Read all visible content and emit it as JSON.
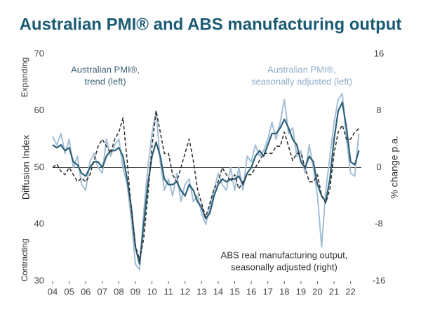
{
  "chart_data": {
    "type": "line",
    "title": "Australian PMI® and ABS manufacturing output",
    "ylabel": "Diffusion Index",
    "y2label": "% change p.a.",
    "upper_label": "Expanding",
    "lower_label": "Contracting",
    "annotations": [
      {
        "lines": [
          "Australian PMI®,",
          "trend (left)"
        ],
        "color": "#3d6378"
      },
      {
        "lines": [
          "Australian PMI®,",
          "seasonally adjusted (left)"
        ],
        "color": "#8eaecb"
      },
      {
        "lines": [
          "ABS real manufacturing output,",
          "seasonally adjusted (right)"
        ],
        "color": "#333333"
      }
    ],
    "x": [
      2004,
      2004.25,
      2004.5,
      2004.75,
      2005,
      2005.25,
      2005.5,
      2005.75,
      2006,
      2006.25,
      2006.5,
      2006.75,
      2007,
      2007.25,
      2007.5,
      2007.75,
      2008,
      2008.25,
      2008.5,
      2008.75,
      2009,
      2009.25,
      2009.5,
      2009.75,
      2010,
      2010.25,
      2010.5,
      2010.75,
      2011,
      2011.25,
      2011.5,
      2011.75,
      2012,
      2012.25,
      2012.5,
      2012.75,
      2013,
      2013.25,
      2013.5,
      2013.75,
      2014,
      2014.25,
      2014.5,
      2014.75,
      2015,
      2015.25,
      2015.5,
      2015.75,
      2016,
      2016.25,
      2016.5,
      2016.75,
      2017,
      2017.25,
      2017.5,
      2017.75,
      2018,
      2018.25,
      2018.5,
      2018.75,
      2019,
      2019.25,
      2019.5,
      2019.75,
      2020,
      2020.25,
      2020.5,
      2020.75,
      2021,
      2021.25,
      2021.5,
      2021.75,
      2022,
      2022.25,
      2022.5
    ],
    "series": [
      {
        "name": "Australian PMI®, seasonally adjusted",
        "color": "#a3bed6",
        "width": 2,
        "dash": false,
        "axis": "y",
        "values": [
          55.5,
          54,
          56,
          52.5,
          55,
          50,
          52,
          47,
          46,
          51,
          52.5,
          50,
          49,
          55,
          52,
          54,
          55,
          50,
          47,
          41,
          33,
          32,
          42,
          50,
          56,
          60,
          51,
          46,
          48,
          45,
          49,
          44,
          47,
          48,
          44,
          45,
          42,
          40,
          43,
          46,
          49,
          47,
          46,
          50,
          46,
          50,
          46,
          52,
          51,
          54,
          52,
          53,
          55,
          58,
          55,
          58,
          62,
          56,
          57,
          52,
          53,
          49,
          54,
          50,
          45,
          36,
          46,
          52,
          58,
          62,
          63,
          55,
          49,
          48.5,
          56
        ]
      },
      {
        "name": "Australian PMI®, trend",
        "color": "#2d5f78",
        "width": 2.2,
        "dash": false,
        "axis": "y",
        "values": [
          54,
          53.5,
          54,
          53,
          53.5,
          51,
          50.5,
          49,
          48.5,
          50,
          51,
          51,
          50,
          52,
          53,
          53,
          53.5,
          52,
          48,
          43,
          36,
          33,
          40,
          47,
          52,
          54.5,
          52,
          48,
          47,
          47,
          47.5,
          46,
          45,
          47,
          46,
          44,
          43,
          41,
          42,
          45,
          47,
          48,
          47.5,
          48,
          48,
          48.5,
          47,
          49,
          50,
          52,
          53,
          52,
          54,
          56,
          56,
          57,
          58.5,
          57,
          55,
          54,
          51,
          50,
          52,
          51,
          47,
          45,
          44,
          48,
          55,
          60,
          61.5,
          57,
          51,
          50.5,
          53
        ]
      },
      {
        "name": "ABS real manufacturing output",
        "color": "#333333",
        "width": 1.6,
        "dash": true,
        "axis": "y2",
        "values": [
          0,
          0.5,
          -0.5,
          -1,
          0,
          -1,
          -2,
          -1.5,
          -2,
          -1,
          1,
          3,
          4,
          3,
          2,
          4,
          5,
          7,
          1,
          -6,
          -11,
          -13,
          -10,
          -4,
          3,
          8,
          5,
          2,
          2,
          -1,
          -2,
          0,
          2,
          4,
          1,
          -3,
          -5,
          -7,
          -5,
          -3,
          -2,
          0,
          -1,
          -2,
          -1,
          -3,
          -2,
          -1,
          -1,
          0,
          1,
          2,
          2,
          2,
          3,
          3,
          5,
          3,
          1,
          2,
          2,
          0,
          -2,
          -2,
          -1,
          -4,
          -5,
          -3,
          2,
          5,
          6,
          4,
          4,
          5,
          5.5
        ]
      }
    ],
    "xlim": [
      2004,
      2022.65
    ],
    "xticks": [
      {
        "value": 2004,
        "label": "04"
      },
      {
        "value": 2005,
        "label": "05"
      },
      {
        "value": 2006,
        "label": "06"
      },
      {
        "value": 2007,
        "label": "07"
      },
      {
        "value": 2008,
        "label": "08"
      },
      {
        "value": 2009,
        "label": "09"
      },
      {
        "value": 2010,
        "label": "10"
      },
      {
        "value": 2011,
        "label": "11"
      },
      {
        "value": 2012,
        "label": "12"
      },
      {
        "value": 2013,
        "label": "13"
      },
      {
        "value": 2014,
        "label": "14"
      },
      {
        "value": 2015,
        "label": "15"
      },
      {
        "value": 2016,
        "label": "16"
      },
      {
        "value": 2017,
        "label": "17"
      },
      {
        "value": 2018,
        "label": "18"
      },
      {
        "value": 2019,
        "label": "19"
      },
      {
        "value": 2020,
        "label": "20"
      },
      {
        "value": 2021,
        "label": "21"
      },
      {
        "value": 2022,
        "label": "22"
      }
    ],
    "ylim": [
      30,
      70
    ],
    "yticks": [
      30,
      40,
      50,
      60,
      70
    ],
    "y2lim": [
      -16,
      16
    ],
    "y2ticks": [
      -16,
      -8,
      0,
      8,
      16
    ],
    "hline": 50
  }
}
